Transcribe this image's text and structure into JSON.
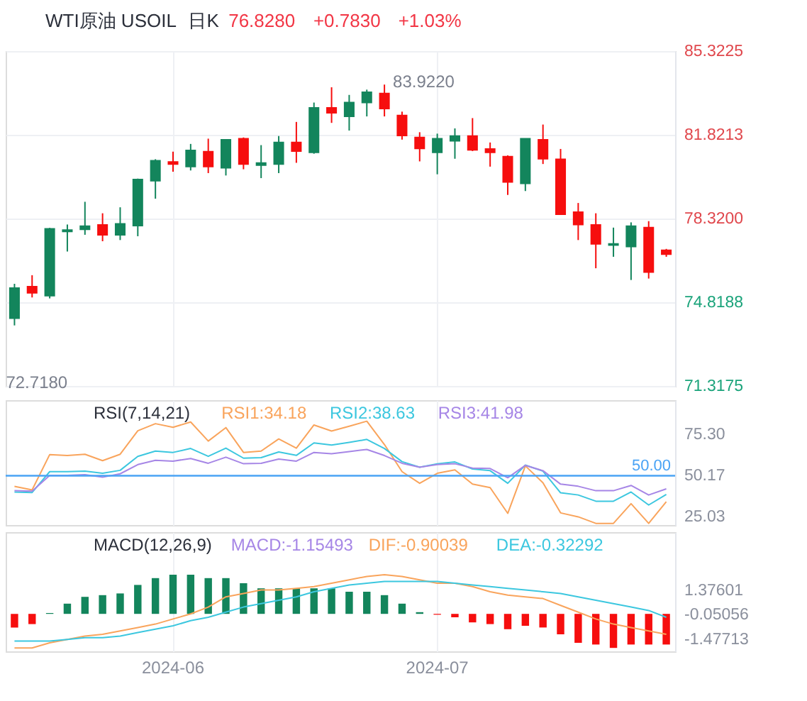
{
  "chart_data": [
    {
      "type": "candlestick",
      "title": "WTI原油 USOIL",
      "subtitle": "日K",
      "annotations": [
        "76.8280",
        "+0.7830",
        "+1.03%",
        "83.9220",
        "72.7180"
      ],
      "categories": [
        null,
        null,
        null,
        null,
        null,
        null,
        null,
        null,
        null,
        "2024-06",
        null,
        null,
        null,
        null,
        null,
        null,
        null,
        null,
        null,
        null,
        null,
        null,
        null,
        null,
        "2024-07",
        null,
        null,
        null,
        null,
        null,
        null,
        null,
        null,
        null,
        null,
        null,
        null,
        null
      ],
      "ohlc": [
        [
          74.15,
          75.59,
          73.85,
          75.41
        ],
        [
          75.47,
          75.95,
          75.02,
          75.21
        ],
        [
          75.09,
          77.93,
          74.98,
          77.89
        ],
        [
          77.78,
          78.07,
          76.94,
          77.84
        ],
        [
          77.87,
          79.02,
          77.64,
          78.0
        ],
        [
          78.05,
          78.54,
          77.37,
          77.64
        ],
        [
          77.64,
          78.79,
          77.42,
          78.1
        ],
        [
          78.02,
          79.99,
          77.58,
          79.95
        ],
        [
          79.9,
          80.8,
          79.15,
          80.74
        ],
        [
          80.69,
          81.12,
          80.28,
          80.6
        ],
        [
          80.49,
          81.44,
          80.33,
          81.17
        ],
        [
          81.12,
          81.66,
          80.22,
          80.49
        ],
        [
          80.44,
          81.61,
          80.12,
          81.61
        ],
        [
          81.66,
          81.71,
          80.38,
          80.6
        ],
        [
          80.55,
          81.39,
          80.01,
          80.64
        ],
        [
          80.6,
          81.77,
          80.22,
          81.5
        ],
        [
          81.5,
          82.36,
          80.65,
          81.14
        ],
        [
          81.09,
          83.17,
          81.03,
          82.95
        ],
        [
          82.95,
          83.81,
          82.32,
          82.74
        ],
        [
          82.59,
          83.49,
          82.0,
          83.17
        ],
        [
          83.17,
          83.71,
          82.59,
          83.6
        ],
        [
          83.55,
          83.922,
          82.59,
          82.92
        ],
        [
          82.63,
          82.79,
          81.62,
          81.79
        ],
        [
          81.71,
          81.93,
          80.71,
          81.25
        ],
        [
          81.09,
          81.87,
          80.17,
          81.66
        ],
        [
          81.57,
          82.09,
          80.82,
          81.77
        ],
        [
          81.77,
          82.52,
          81.14,
          81.19
        ],
        [
          81.23,
          81.5,
          80.49,
          81.09
        ],
        [
          80.91,
          80.96,
          79.31,
          79.85
        ],
        [
          79.79,
          81.66,
          79.47,
          81.66
        ],
        [
          81.61,
          82.25,
          80.6,
          80.82
        ],
        [
          80.8,
          81.23,
          78.5,
          78.5
        ],
        [
          78.59,
          78.97,
          77.42,
          78.07
        ],
        [
          78.05,
          78.54,
          76.24,
          77.26
        ],
        [
          77.21,
          77.94,
          76.72,
          77.26
        ],
        [
          77.15,
          78.16,
          75.75,
          78.0
        ],
        [
          77.94,
          78.21,
          75.81,
          76.08
        ],
        [
          76.99,
          77.05,
          76.72,
          76.83
        ]
      ],
      "colors": [
        "#13855c",
        "#f60e0e",
        "#13855c",
        "#13855c",
        "#13855c",
        "#f60e0e",
        "#13855c",
        "#13855c",
        "#13855c",
        "#f60e0e",
        "#13855c",
        "#f60e0e",
        "#13855c",
        "#f60e0e",
        "#13855c",
        "#13855c",
        "#f60e0e",
        "#13855c",
        "#f60e0e",
        "#13855c",
        "#13855c",
        "#f60e0e",
        "#f60e0e",
        "#f60e0e",
        "#13855c",
        "#13855c",
        "#f60e0e",
        "#f60e0e",
        "#f60e0e",
        "#13855c",
        "#f60e0e",
        "#f60e0e",
        "#f60e0e",
        "#f60e0e",
        "#13855c",
        "#13855c",
        "#f60e0e",
        "#f60e0e"
      ],
      "ylim": [
        71.3175,
        85.3225
      ],
      "yticks": [
        85.3225,
        81.8213,
        {
          "value": 78.32,
          "label": "78.3200"
        },
        74.8188,
        71.3175
      ],
      "grid": true,
      "tick_labels": "y"
    },
    {
      "type": "line",
      "title": "RSI(7,14,21)",
      "legend": "top",
      "marker": "none",
      "line_style": "solid",
      "grid": "x",
      "tick_labels": "y",
      "categories": [
        null,
        null,
        null,
        null,
        null,
        null,
        null,
        null,
        null,
        "2024-06",
        null,
        null,
        null,
        null,
        null,
        null,
        null,
        null,
        null,
        null,
        null,
        null,
        null,
        null,
        "2024-07",
        null,
        null,
        null,
        null,
        null,
        null,
        null,
        null,
        null,
        null,
        null,
        null,
        null
      ],
      "series": [
        {
          "name": "RSI1:34.18",
          "color": "#f9a45c",
          "values": [
            43.5,
            41.4,
            62.9,
            62.3,
            63.1,
            59.2,
            63.1,
            77.4,
            81.7,
            79.5,
            82.7,
            71.1,
            79.3,
            64.2,
            65.0,
            72.4,
            66.8,
            80.9,
            77.2,
            80.1,
            83.2,
            69.0,
            52.5,
            45.4,
            51.5,
            53.6,
            44.9,
            42.8,
            27.1,
            56.0,
            45.7,
            27.4,
            25.0,
            21.0,
            21.0,
            33.0,
            21.0,
            34.2
          ]
        },
        {
          "name": "RSI2:38.63",
          "color": "#3cc7df",
          "values": [
            40.1,
            39.8,
            52.5,
            52.5,
            52.8,
            51.5,
            53.3,
            61.8,
            65.0,
            64.2,
            66.6,
            61.8,
            66.8,
            60.7,
            61.0,
            64.5,
            62.4,
            70.0,
            68.7,
            70.3,
            72.1,
            66.6,
            58.6,
            55.2,
            57.3,
            58.4,
            54.1,
            53.1,
            45.4,
            56.5,
            52.8,
            39.6,
            38.3,
            34.5,
            34.5,
            40.1,
            32.2,
            38.6
          ]
        },
        {
          "name": "RSI3:41.98",
          "color": "#a686e6",
          "values": [
            40.9,
            40.6,
            50.2,
            50.2,
            50.7,
            49.1,
            51.2,
            56.8,
            59.4,
            58.9,
            60.5,
            57.6,
            61.3,
            57.3,
            57.6,
            60.2,
            58.9,
            64.2,
            63.4,
            64.7,
            66.0,
            62.3,
            57.6,
            55.2,
            56.8,
            57.3,
            54.7,
            54.4,
            48.8,
            56.3,
            53.1,
            44.9,
            43.6,
            40.9,
            40.9,
            44.1,
            38.3,
            42.0
          ]
        }
      ],
      "ylim": [
        20,
        96
      ],
      "yticks": [
        {
          "value": 75.3,
          "label": "75.30"
        },
        50.17,
        25.03
      ],
      "ref_lines": [
        {
          "axis": "y",
          "value": 50,
          "label": "50.00",
          "color": "#4aa3f5"
        }
      ]
    },
    {
      "type": "bar",
      "title": "MACD(12,26,9)",
      "legend": "top",
      "marker": "none",
      "line_style": "solid",
      "grid": "x",
      "categories": [
        null,
        null,
        null,
        null,
        null,
        null,
        null,
        null,
        null,
        "2024-06",
        null,
        null,
        null,
        null,
        null,
        null,
        null,
        null,
        null,
        null,
        null,
        null,
        null,
        null,
        "2024-07",
        null,
        null,
        null,
        null,
        null,
        null,
        null,
        null,
        null,
        null,
        null,
        null,
        null
      ],
      "series": [
        {
          "name": "MACD:-1.15493",
          "colors": [
            "#f60e0e",
            "#f60e0e",
            "#13855c",
            "#13855c",
            "#13855c",
            "#13855c",
            "#13855c",
            "#13855c",
            "#13855c",
            "#13855c",
            "#13855c",
            "#13855c",
            "#13855c",
            "#13855c",
            "#13855c",
            "#13855c",
            "#13855c",
            "#13855c",
            "#13855c",
            "#13855c",
            "#13855c",
            "#13855c",
            "#13855c",
            "#13855c",
            "#f60e0e",
            "#f60e0e",
            "#f60e0e",
            "#f60e0e",
            "#f60e0e",
            "#f60e0e",
            "#f60e0e",
            "#f60e0e",
            "#f60e0e",
            "#f60e0e",
            "#f60e0e",
            "#f60e0e",
            "#f60e0e",
            "#f60e0e"
          ],
          "values": [
            -0.8,
            -0.6,
            0.05,
            0.6,
            1.0,
            1.1,
            1.2,
            1.7,
            2.1,
            2.3,
            2.3,
            2.1,
            2.1,
            1.8,
            1.5,
            1.5,
            1.5,
            1.5,
            1.5,
            1.3,
            1.3,
            1.1,
            0.6,
            0.1,
            -0.05,
            -0.2,
            -0.5,
            -0.6,
            -0.9,
            -0.7,
            -0.8,
            -1.2,
            -1.7,
            -1.8,
            -2.0,
            -1.8,
            -1.8,
            -1.8
          ]
        },
        {
          "name": "DIF:-0.90039",
          "type": "line",
          "color": "#f9a45c",
          "values": [
            -2.0,
            -2.0,
            -1.7,
            -1.5,
            -1.3,
            -1.2,
            -1.0,
            -0.8,
            -0.6,
            -0.3,
            0.0,
            0.4,
            1.0,
            1.2,
            1.4,
            1.4,
            1.5,
            1.6,
            1.8,
            2.0,
            2.2,
            2.3,
            2.2,
            2.0,
            1.8,
            1.8,
            1.6,
            1.3,
            1.1,
            1.0,
            0.9,
            0.5,
            0.1,
            -0.3,
            -0.6,
            -0.8,
            -1.0,
            -1.2
          ]
        },
        {
          "name": "DEA:-0.32292",
          "type": "line",
          "color": "#3cc7df",
          "values": [
            -1.6,
            -1.6,
            -1.6,
            -1.5,
            -1.4,
            -1.4,
            -1.3,
            -1.1,
            -0.9,
            -0.7,
            -0.4,
            -0.2,
            0.1,
            0.4,
            0.6,
            0.8,
            1.0,
            1.3,
            1.5,
            1.7,
            1.8,
            1.9,
            1.9,
            1.9,
            1.9,
            1.8,
            1.7,
            1.6,
            1.5,
            1.4,
            1.3,
            1.2,
            1.0,
            0.8,
            0.6,
            0.4,
            0.2,
            -0.2
          ]
        }
      ],
      "ylim": [
        -2.2,
        4.8
      ],
      "yticks": [
        1.37601,
        -0.05056,
        -1.47713
      ]
    }
  ]
}
